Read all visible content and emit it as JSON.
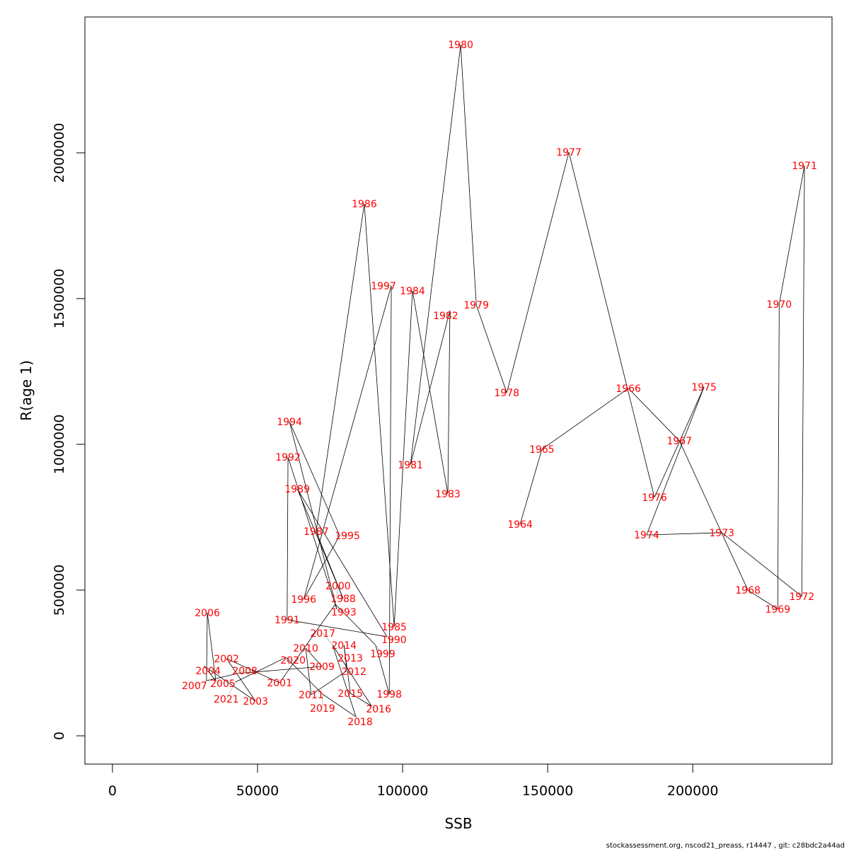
{
  "chart_data": {
    "type": "line",
    "title": "",
    "xlabel": "SSB",
    "ylabel": "R(age 1)",
    "xlim": [
      -9500,
      248000
    ],
    "ylim": [
      -97000,
      2466000
    ],
    "xticks": [
      0,
      50000,
      100000,
      150000,
      200000
    ],
    "yticks": [
      0,
      500000,
      1000000,
      1500000,
      2000000
    ],
    "grid": false,
    "line_color": "#000000",
    "label_color": "#ff0000",
    "points": [
      {
        "year": "1964",
        "x": 140500,
        "y": 726000
      },
      {
        "year": "1965",
        "x": 148000,
        "y": 983000
      },
      {
        "year": "1966",
        "x": 177800,
        "y": 1192000
      },
      {
        "year": "1967",
        "x": 195400,
        "y": 1012000
      },
      {
        "year": "1968",
        "x": 219000,
        "y": 500000
      },
      {
        "year": "1969",
        "x": 229300,
        "y": 434500
      },
      {
        "year": "1970",
        "x": 229800,
        "y": 1481000
      },
      {
        "year": "1971",
        "x": 238500,
        "y": 1956000
      },
      {
        "year": "1972",
        "x": 237600,
        "y": 478000
      },
      {
        "year": "1973",
        "x": 210000,
        "y": 697000
      },
      {
        "year": "1974",
        "x": 184100,
        "y": 689000
      },
      {
        "year": "1975",
        "x": 203900,
        "y": 1197000
      },
      {
        "year": "1976",
        "x": 186800,
        "y": 818000
      },
      {
        "year": "1977",
        "x": 157300,
        "y": 2002000
      },
      {
        "year": "1978",
        "x": 135900,
        "y": 1177000
      },
      {
        "year": "1979",
        "x": 125400,
        "y": 1478000
      },
      {
        "year": "1980",
        "x": 120000,
        "y": 2371000
      },
      {
        "year": "1981",
        "x": 102700,
        "y": 930000
      },
      {
        "year": "1982",
        "x": 116300,
        "y": 1459000
      },
      {
        "year": "1983",
        "x": 115600,
        "y": 830000
      },
      {
        "year": "1984",
        "x": 103400,
        "y": 1527000
      },
      {
        "year": "1985",
        "x": 97100,
        "y": 374000
      },
      {
        "year": "1986",
        "x": 86800,
        "y": 1825000
      },
      {
        "year": "1987",
        "x": 70200,
        "y": 701000
      },
      {
        "year": "1988",
        "x": 79500,
        "y": 471000
      },
      {
        "year": "1989",
        "x": 63700,
        "y": 847000
      },
      {
        "year": "1990",
        "x": 94600,
        "y": 340000
      },
      {
        "year": "1991",
        "x": 60200,
        "y": 398000
      },
      {
        "year": "1992",
        "x": 60500,
        "y": 956000
      },
      {
        "year": "1993",
        "x": 77300,
        "y": 434500
      },
      {
        "year": "1994",
        "x": 61000,
        "y": 1078000
      },
      {
        "year": "1995",
        "x": 78300,
        "y": 687000
      },
      {
        "year": "1996",
        "x": 65900,
        "y": 468000
      },
      {
        "year": "1997",
        "x": 96100,
        "y": 1544000
      },
      {
        "year": "1998",
        "x": 95400,
        "y": 143000
      },
      {
        "year": "1999",
        "x": 90700,
        "y": 311000
      },
      {
        "year": "2000",
        "x": 76800,
        "y": 451500
      },
      {
        "year": "2001",
        "x": 57600,
        "y": 182000
      },
      {
        "year": "2002",
        "x": 39300,
        "y": 265000
      },
      {
        "year": "2003",
        "x": 49300,
        "y": 119000
      },
      {
        "year": "2004",
        "x": 31500,
        "y": 240000
      },
      {
        "year": "2005",
        "x": 35600,
        "y": 189000
      },
      {
        "year": "2006",
        "x": 32700,
        "y": 422000
      },
      {
        "year": "2007",
        "x": 32400,
        "y": 189000
      },
      {
        "year": "2008",
        "x": 43200,
        "y": 214000
      },
      {
        "year": "2009",
        "x": 72200,
        "y": 238000
      },
      {
        "year": "2010",
        "x": 66600,
        "y": 301000
      },
      {
        "year": "2011",
        "x": 68500,
        "y": 141000
      },
      {
        "year": "2012",
        "x": 80500,
        "y": 221000
      },
      {
        "year": "2013",
        "x": 80500,
        "y": 250000
      },
      {
        "year": "2014",
        "x": 79800,
        "y": 311000
      },
      {
        "year": "2015",
        "x": 82000,
        "y": 146000
      },
      {
        "year": "2016",
        "x": 89300,
        "y": 102000
      },
      {
        "year": "2017",
        "x": 75900,
        "y": 311000
      },
      {
        "year": "2018",
        "x": 83900,
        "y": 65500
      },
      {
        "year": "2019",
        "x": 72400,
        "y": 143000
      },
      {
        "year": "2020",
        "x": 59800,
        "y": 269000
      },
      {
        "year": "2021",
        "x": 42400,
        "y": 184500
      }
    ]
  },
  "xtick_labels": [
    "0",
    "50000",
    "100000",
    "150000",
    "200000"
  ],
  "ytick_labels": [
    "0",
    "500000",
    "1000000",
    "1500000",
    "2000000"
  ],
  "footer": "stockassessment.org, nscod21_preass, r14447 , git: c28bdc2a44ad"
}
